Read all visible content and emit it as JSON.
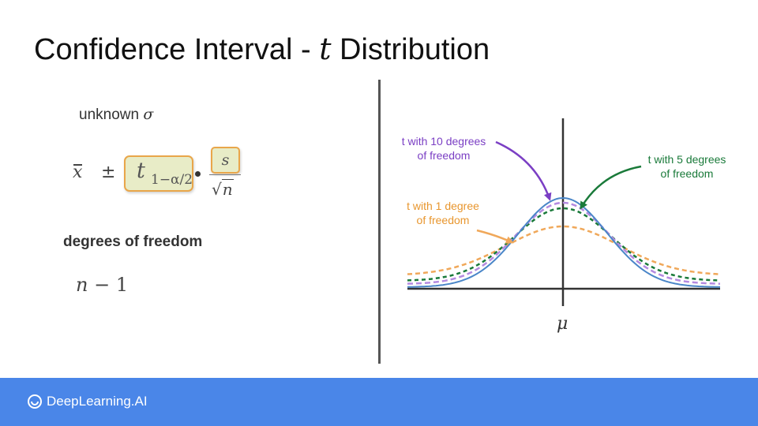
{
  "slide": {
    "title_prefix": "Confidence Interval - ",
    "title_var": "t",
    "title_suffix": " Distribution"
  },
  "formula": {
    "unknown_text": "unknown",
    "unknown_symbol": "σ",
    "xbar": "x",
    "pm": "±",
    "t": "t",
    "t_subscript": "1−α/2",
    "numerator": "s",
    "denominator_radical": "√",
    "denominator_var": "n",
    "dof_label": "degrees of freedom",
    "dof_var": "n",
    "dof_rest": " − 1"
  },
  "diagram": {
    "label_t10_line1": "t with 10 degrees",
    "label_t10_line2": "of freedom",
    "label_t5_line1": "t with 5 degrees",
    "label_t5_line2": "of freedom",
    "label_t1_line1": "t with 1 degree",
    "label_t1_line2": "of freedom",
    "mu": "μ",
    "colors": {
      "normal": "#4a86c8",
      "t10": "#b48ae0",
      "t5": "#1a7a3a",
      "t1": "#f0a85a",
      "label_t10": "#7b3fc4",
      "label_t5": "#1a7a3a",
      "label_t1": "#e8962e"
    }
  },
  "footer": {
    "brand": "DeepLearning.AI",
    "color": "#4a86e8"
  }
}
